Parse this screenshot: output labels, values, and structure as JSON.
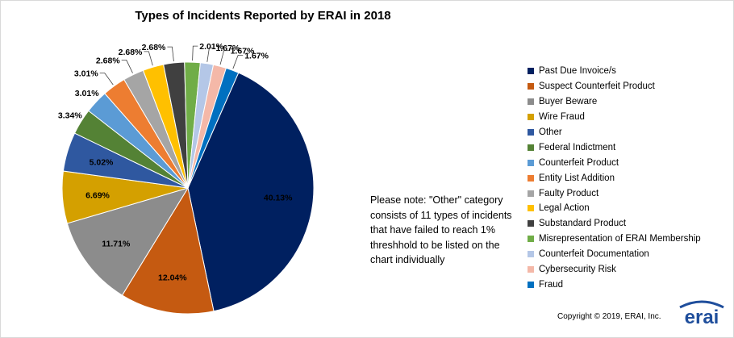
{
  "chart_data": {
    "type": "pie",
    "title": "Types of Incidents Reported by ERAI in 2018",
    "series": [
      {
        "name": "Past Due Invoice/s",
        "value": 40.13,
        "label": "40.13%",
        "color": "#002060"
      },
      {
        "name": "Suspect Counterfeit Product",
        "value": 12.04,
        "label": "12.04%",
        "color": "#C55A11"
      },
      {
        "name": "Buyer Beware",
        "value": 11.71,
        "label": "11.71%",
        "color": "#8C8C8C"
      },
      {
        "name": "Wire Fraud",
        "value": 6.69,
        "label": "6.69%",
        "color": "#D4A000"
      },
      {
        "name": "Other",
        "value": 5.02,
        "label": "5.02%",
        "color": "#2F58A0"
      },
      {
        "name": "Federal Indictment",
        "value": 3.34,
        "label": "3.34%",
        "color": "#548235"
      },
      {
        "name": "Counterfeit Product",
        "value": 3.01,
        "label": "3.01%",
        "color": "#5B9BD5"
      },
      {
        "name": "Entity List Addition",
        "value": 3.01,
        "label": "3.01%",
        "color": "#ED7D31"
      },
      {
        "name": "Faulty Product",
        "value": 2.68,
        "label": "2.68%",
        "color": "#A5A5A5"
      },
      {
        "name": "Legal Action",
        "value": 2.68,
        "label": "2.68%",
        "color": "#FFC000"
      },
      {
        "name": "Substandard Product",
        "value": 2.68,
        "label": "2.68%",
        "color": "#404040"
      },
      {
        "name": "Misrepresentation of ERAI Membership",
        "value": 2.01,
        "label": "2.01%",
        "color": "#70AD47"
      },
      {
        "name": "Counterfeit Documentation",
        "value": 1.67,
        "label": "1.67%",
        "color": "#B4C7E7"
      },
      {
        "name": "Cybersecurity Risk",
        "value": 1.67,
        "label": "1.67%",
        "color": "#F4B8A8"
      },
      {
        "name": "Fraud",
        "value": 1.67,
        "label": "1.67%",
        "color": "#0070C0"
      }
    ],
    "legend_position": "right"
  },
  "note": "Please note: \"Other\" category consists of 11 types of incidents that have failed to reach 1% threshhold to be listed on the chart individually",
  "copyright": "Copyright © 2019, ERAI, Inc.",
  "logo_text": "erai"
}
